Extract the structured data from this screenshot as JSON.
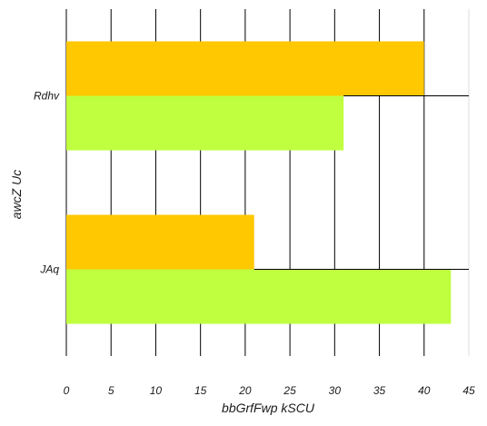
{
  "chart_data": {
    "type": "bar",
    "orientation": "horizontal",
    "categories": [
      "Rdhv",
      "JAq"
    ],
    "series": [
      {
        "values": [
          40,
          21
        ],
        "color": "#ffc800"
      },
      {
        "values": [
          31,
          43
        ],
        "color": "#bfff3f"
      }
    ],
    "xlabel": "bbGrfFwp kSCU",
    "ylabel": "awcZ Uc",
    "xlim": [
      0,
      45
    ],
    "xticks": [
      0,
      5,
      10,
      15,
      20,
      25,
      30,
      35,
      40,
      45
    ],
    "grid": true,
    "legend": "none"
  }
}
